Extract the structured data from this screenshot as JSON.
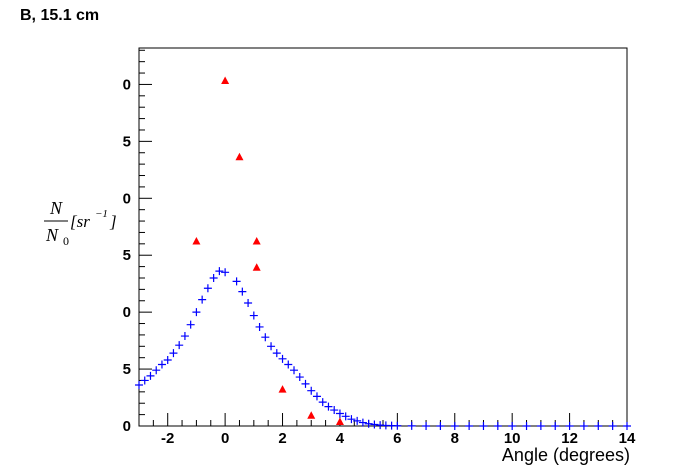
{
  "chart_data": {
    "type": "scatter",
    "title": "B, 15.1 cm",
    "xlabel": "Angle (degrees)",
    "ylabel": {
      "numerator": "N",
      "denominator": "N",
      "denominator_sub": "0",
      "unit": "[sr",
      "unit_sup": "−1",
      "unit_close": "]"
    },
    "xlim": [
      -3,
      14
    ],
    "ylim": [
      0,
      33.2
    ],
    "xticks": [
      -2,
      0,
      2,
      4,
      6,
      8,
      10,
      12,
      14
    ],
    "yticks": [
      0,
      5,
      {
        "value": 10,
        "label": "0"
      },
      {
        "value": 15,
        "label": "5"
      },
      {
        "value": 20,
        "label": "0"
      },
      {
        "value": 25,
        "label": "5"
      },
      {
        "value": 30,
        "label": "0"
      }
    ],
    "series": [
      {
        "color": "#ff0000",
        "marker": "triangle",
        "x": [
          -1,
          0,
          0.5,
          1.1,
          1.1,
          2,
          3,
          4
        ],
        "values": [
          16.2,
          30.3,
          23.6,
          16.2,
          13.9,
          3.2,
          0.9,
          0.35
        ]
      },
      {
        "color": "#0000ff",
        "marker": "cross",
        "x": [
          -3,
          -2.8,
          -2.6,
          -2.4,
          -2.2,
          -2,
          -1.8,
          -1.6,
          -1.4,
          -1.2,
          -1,
          -0.8,
          -0.6,
          -0.4,
          -0.2,
          0,
          0.4,
          0.6,
          0.8,
          1,
          1.2,
          1.4,
          1.6,
          1.8,
          2,
          2.2,
          2.4,
          2.6,
          2.8,
          3,
          3.2,
          3.4,
          3.6,
          3.8,
          4,
          4.2,
          4.4,
          4.6,
          4.8,
          5,
          5.2,
          5.4,
          5.6,
          5.8,
          6,
          6.5,
          7,
          7.5,
          8,
          8.5,
          9,
          9.5,
          10,
          10.5,
          11,
          11.5,
          12,
          12.5,
          13,
          13.5,
          14
        ],
        "values": [
          3.6,
          4.0,
          4.4,
          4.9,
          5.4,
          5.8,
          6.4,
          7.1,
          7.9,
          8.9,
          10.0,
          11.1,
          12.1,
          13.0,
          13.6,
          13.5,
          12.7,
          11.8,
          10.8,
          9.7,
          8.7,
          7.8,
          7.0,
          6.4,
          5.9,
          5.4,
          4.9,
          4.3,
          3.7,
          3.1,
          2.6,
          2.1,
          1.7,
          1.4,
          1.1,
          0.85,
          0.6,
          0.45,
          0.3,
          0.2,
          0.13,
          0.08,
          0.05,
          0.03,
          0.02,
          0.01,
          0,
          0,
          0,
          0,
          0,
          0,
          0,
          0,
          0,
          0,
          0,
          0,
          0,
          0,
          0
        ]
      }
    ]
  }
}
